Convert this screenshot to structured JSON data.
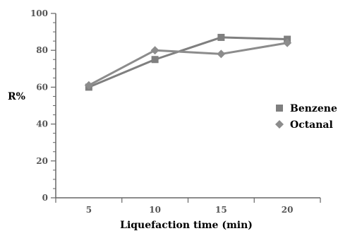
{
  "chart_data": {
    "type": "line",
    "title": "",
    "xlabel": "Liquefaction time (min)",
    "ylabel": "R%",
    "categories": [
      "5",
      "10",
      "15",
      "20"
    ],
    "x": [
      5,
      10,
      15,
      20
    ],
    "ylim": [
      0,
      100
    ],
    "yticks": [
      0,
      20,
      40,
      60,
      80,
      100
    ],
    "grid": false,
    "legend_position": "right",
    "series": [
      {
        "name": "Benzene",
        "values": [
          60,
          75,
          87,
          86
        ],
        "color": "#7f7f7f",
        "marker": "square"
      },
      {
        "name": "Octanal",
        "values": [
          61,
          80,
          78,
          84
        ],
        "color": "#8c8c8c",
        "marker": "diamond"
      }
    ]
  }
}
